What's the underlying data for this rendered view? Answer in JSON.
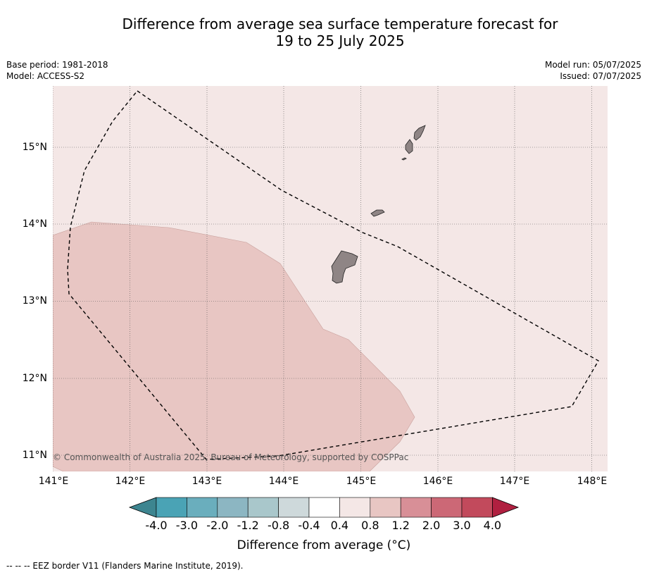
{
  "title_line1": "Difference from average sea surface temperature forecast for",
  "title_line2": "19 to 25 July 2025",
  "base_period": "Base period: 1981-2018",
  "model": "Model: ACCESS-S2",
  "model_run": "Model run: 05/07/2025",
  "issued": "Issued: 07/07/2025",
  "credit": "© Commonwealth of Australia 2025, Bureau of Meteorology, supported by COSPPac",
  "map_axes": {
    "lon_range": [
      141.0,
      148.2
    ],
    "lat_range": [
      10.8,
      15.8
    ],
    "lon_ticks": [
      "141°E",
      "142°E",
      "143°E",
      "144°E",
      "145°E",
      "146°E",
      "147°E",
      "148°E"
    ],
    "lat_ticks": [
      "15°N",
      "14°N",
      "13°N",
      "12°N",
      "11°N"
    ],
    "gridlines": "dotted"
  },
  "colorbar": {
    "title": "Difference from average (°C)",
    "labels": [
      "-4.0",
      "-3.0",
      "-2.0",
      "-1.2",
      "-0.8",
      "-0.4",
      "0.4",
      "0.8",
      "1.2",
      "2.0",
      "3.0",
      "4.0"
    ],
    "colors": [
      "#4aa3b5",
      "#6aaebd",
      "#8cb6c2",
      "#a9c7cb",
      "#ced9db",
      "#ffffff",
      "#f4e7e6",
      "#e8c6c3",
      "#d88f97",
      "#cc6876",
      "#c24a5c"
    ],
    "low_extend_color": "#3d8590",
    "high_extend_color": "#b02040"
  },
  "field_colors": {
    "background_class_0_4_to_0_8": "#f4e7e6",
    "class_0_8_to_1_2": "#e8c6c3",
    "land": "#8f8585"
  },
  "footnote": "--  --  -- EEZ border V11 (Flanders Marine Institute, 2019)."
}
